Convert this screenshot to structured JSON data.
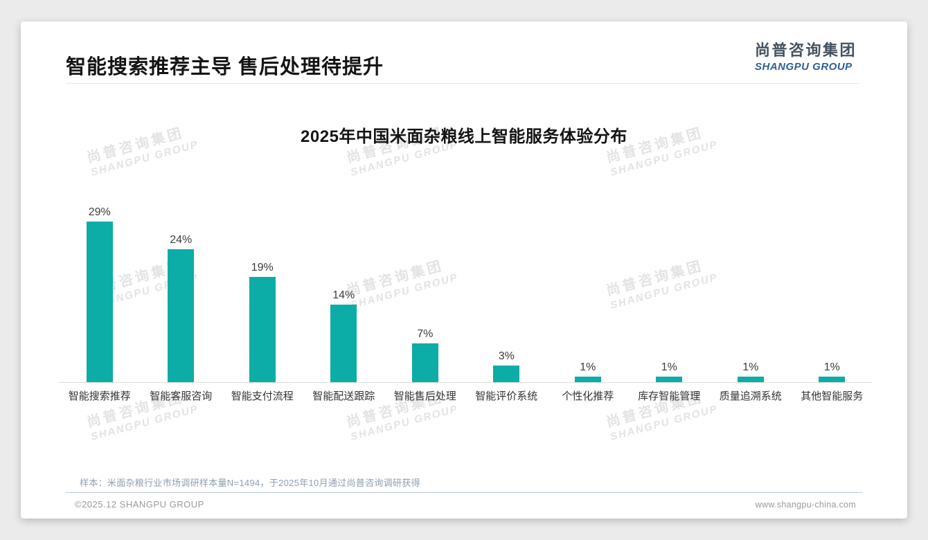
{
  "header": {
    "title": "智能搜索推荐主导 售后处理待提升"
  },
  "logo": {
    "cn": "尚普咨询集团",
    "en": "SHANGPU GROUP"
  },
  "watermark": {
    "cn": "尚普咨询集团",
    "en": "SHANGPU GROUP"
  },
  "chart_data": {
    "type": "bar",
    "title": "2025年中国米面杂粮线上智能服务体验分布",
    "categories": [
      "智能搜索推荐",
      "智能客服咨询",
      "智能支付流程",
      "智能配送跟踪",
      "智能售后处理",
      "智能评价系统",
      "个性化推荐",
      "库存智能管理",
      "质量追溯系统",
      "其他智能服务"
    ],
    "values": [
      29,
      24,
      19,
      14,
      7,
      3,
      1,
      1,
      1,
      1
    ],
    "value_labels": [
      "29%",
      "24%",
      "19%",
      "14%",
      "7%",
      "3%",
      "1%",
      "1%",
      "1%",
      "1%"
    ],
    "unit": "percent",
    "bar_color": "#0cada6",
    "ylim": [
      0,
      30
    ],
    "grid": false,
    "legend": false,
    "xlabel": "",
    "ylabel": ""
  },
  "note": "样本：米面杂粮行业市场调研样本量N=1494，于2025年10月通过尚普咨询调研获得",
  "footer": {
    "copyright": "©2025.12 SHANGPU GROUP",
    "website": "www.shangpu-china.com"
  },
  "colors": {
    "bar": "#0cada6",
    "logo_en": "#2d5f9a",
    "note_text": "#8e9fb3"
  }
}
